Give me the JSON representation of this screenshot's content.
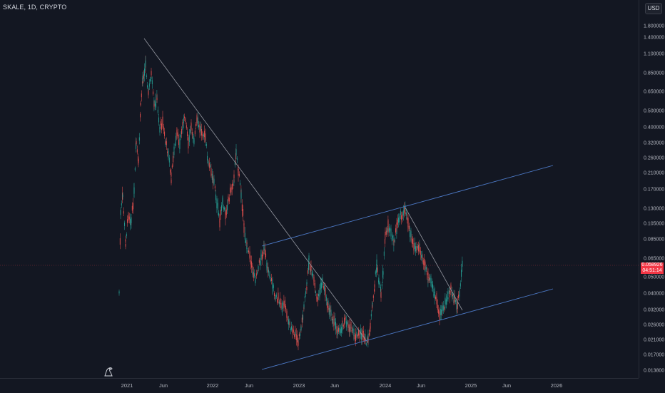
{
  "header": {
    "title": "SKALE, 1D, CRYPTO",
    "currency": "USD"
  },
  "price_axis": {
    "labels": [
      "1.800000",
      "1.400000",
      "1.100000",
      "0.850000",
      "0.650000",
      "0.500000",
      "0.400000",
      "0.320000",
      "0.260000",
      "0.210000",
      "0.170000",
      "0.130000",
      "0.105000",
      "0.085000",
      "0.065000",
      "0.050000",
      "0.040000",
      "0.032000",
      "0.026000",
      "0.021000",
      "0.017000",
      "0.013800"
    ],
    "current_price": "0.058926",
    "countdown": "04:51:14"
  },
  "time_axis": {
    "labels": [
      "2021",
      "Jun",
      "2022",
      "Jun",
      "2023",
      "Jun",
      "2024",
      "Jun",
      "2025",
      "Jun",
      "2026"
    ]
  },
  "colors": {
    "up": "#26a69a",
    "down": "#ef5350",
    "background": "#131722",
    "trendline": "#9598a1",
    "channel": "#4c78c4",
    "price_badge": "#f23645"
  },
  "icons": {
    "logo": "tradingview-dino-icon"
  }
}
